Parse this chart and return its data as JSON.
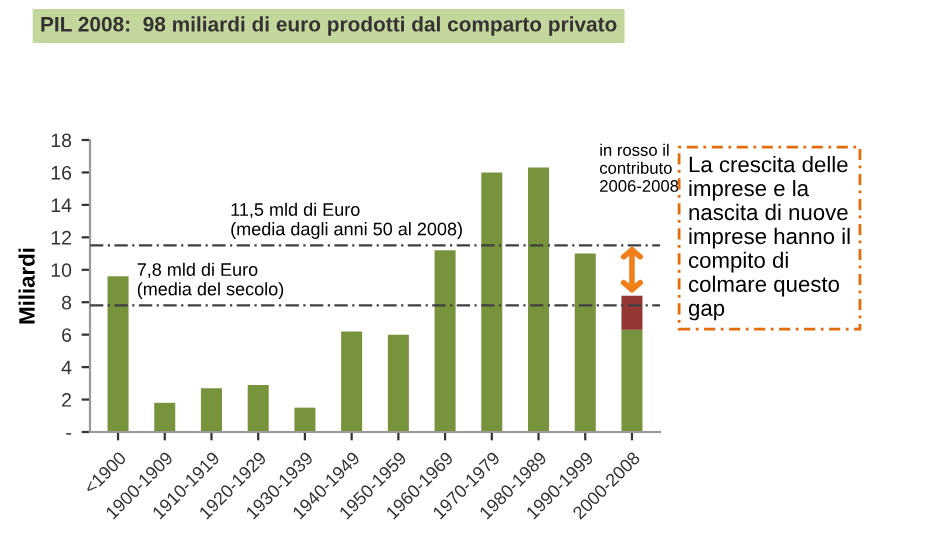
{
  "chart_data": {
    "type": "bar",
    "title": "PIL 2008:  98 miliardi di euro prodotti dal comparto privato",
    "ylabel": "Miliardi",
    "categories": [
      "<1900",
      "1900-1909",
      "1910-1919",
      "1920-1929",
      "1930-1939",
      "1940-1949",
      "1950-1959",
      "1960-1969",
      "1970-1979",
      "1980-1989",
      "1990-1999",
      "2000-2008"
    ],
    "series": [
      {
        "color": "#77933c",
        "values": [
          9.6,
          1.8,
          2.7,
          2.9,
          1.5,
          6.2,
          6.0,
          11.2,
          16.0,
          16.3,
          11.0,
          6.3
        ]
      },
      {
        "color": "#953735",
        "values": [
          null,
          null,
          null,
          null,
          null,
          null,
          null,
          null,
          null,
          null,
          null,
          2.1
        ]
      }
    ],
    "stacked": true,
    "ylim": [
      0,
      18
    ],
    "yticks": [
      {
        "value": 0,
        "label": "-"
      },
      2,
      4,
      6,
      8,
      10,
      12,
      14,
      16,
      18
    ],
    "grid": false,
    "ref_lines": [
      {
        "axis": "y",
        "value": 7.8,
        "label": "7,8 mld di Euro\n(media del secolo)",
        "color": "#404040",
        "line_style": "dashed"
      },
      {
        "axis": "y",
        "value": 11.5,
        "label": "11,5 mld di Euro\n(media dagli anni 50 al 2008)",
        "color": "#404040",
        "line_style": "dashed"
      }
    ],
    "annotations": [
      "in rosso il\ncontributo\n2006-2008",
      "La crescita delle\nimprese e la\nnascita di nuove\nimprese hanno il\ncompito di\ncolmare questo\ngap"
    ]
  }
}
